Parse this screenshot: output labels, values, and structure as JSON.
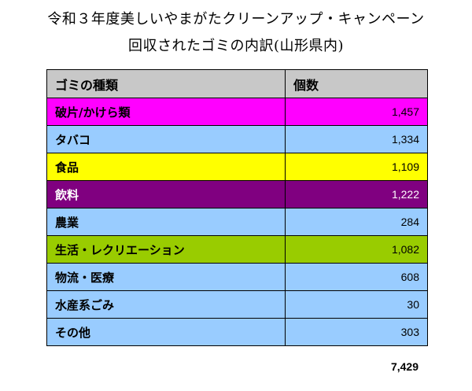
{
  "title": {
    "line1": "令和３年度美しいやまがたクリーンアップ・キャンペーン",
    "line2": "回収されたゴミの内訳(山形県内)"
  },
  "table": {
    "headers": [
      "ゴミの種類",
      "個数"
    ],
    "header_color": "#c8c8c8",
    "rows": [
      {
        "type": "破片/かけら類",
        "count": "1,457",
        "name_color": "#ff00ff",
        "count_color": "#ff00ff",
        "text_color": "#000000"
      },
      {
        "type": "タバコ",
        "count": "1,334",
        "name_color": "#99ccff",
        "count_color": "#99ccff",
        "text_color": "#000000"
      },
      {
        "type": "食品",
        "count": "1,109",
        "name_color": "#ffff00",
        "count_color": "#ffff00",
        "text_color": "#000000"
      },
      {
        "type": "飲料",
        "count": "1,222",
        "name_color": "#800080",
        "count_color": "#800080",
        "text_color": "#ffffff"
      },
      {
        "type": "農業",
        "count": "284",
        "name_color": "#99ccff",
        "count_color": "#99ccff",
        "text_color": "#000000"
      },
      {
        "type": "生活・レクリエーション",
        "count": "1,082",
        "name_color": "#99cc00",
        "count_color": "#99cc00",
        "text_color": "#000000"
      },
      {
        "type": "物流・医療",
        "count": "608",
        "name_color": "#99ccff",
        "count_color": "#99ccff",
        "text_color": "#000000"
      },
      {
        "type": "水産系ごみ",
        "count": "30",
        "name_color": "#99ccff",
        "count_color": "#99ccff",
        "text_color": "#000000"
      },
      {
        "type": "その他",
        "count": "303",
        "name_color": "#99ccff",
        "count_color": "#99ccff",
        "text_color": "#000000"
      }
    ],
    "total": "7,429"
  }
}
